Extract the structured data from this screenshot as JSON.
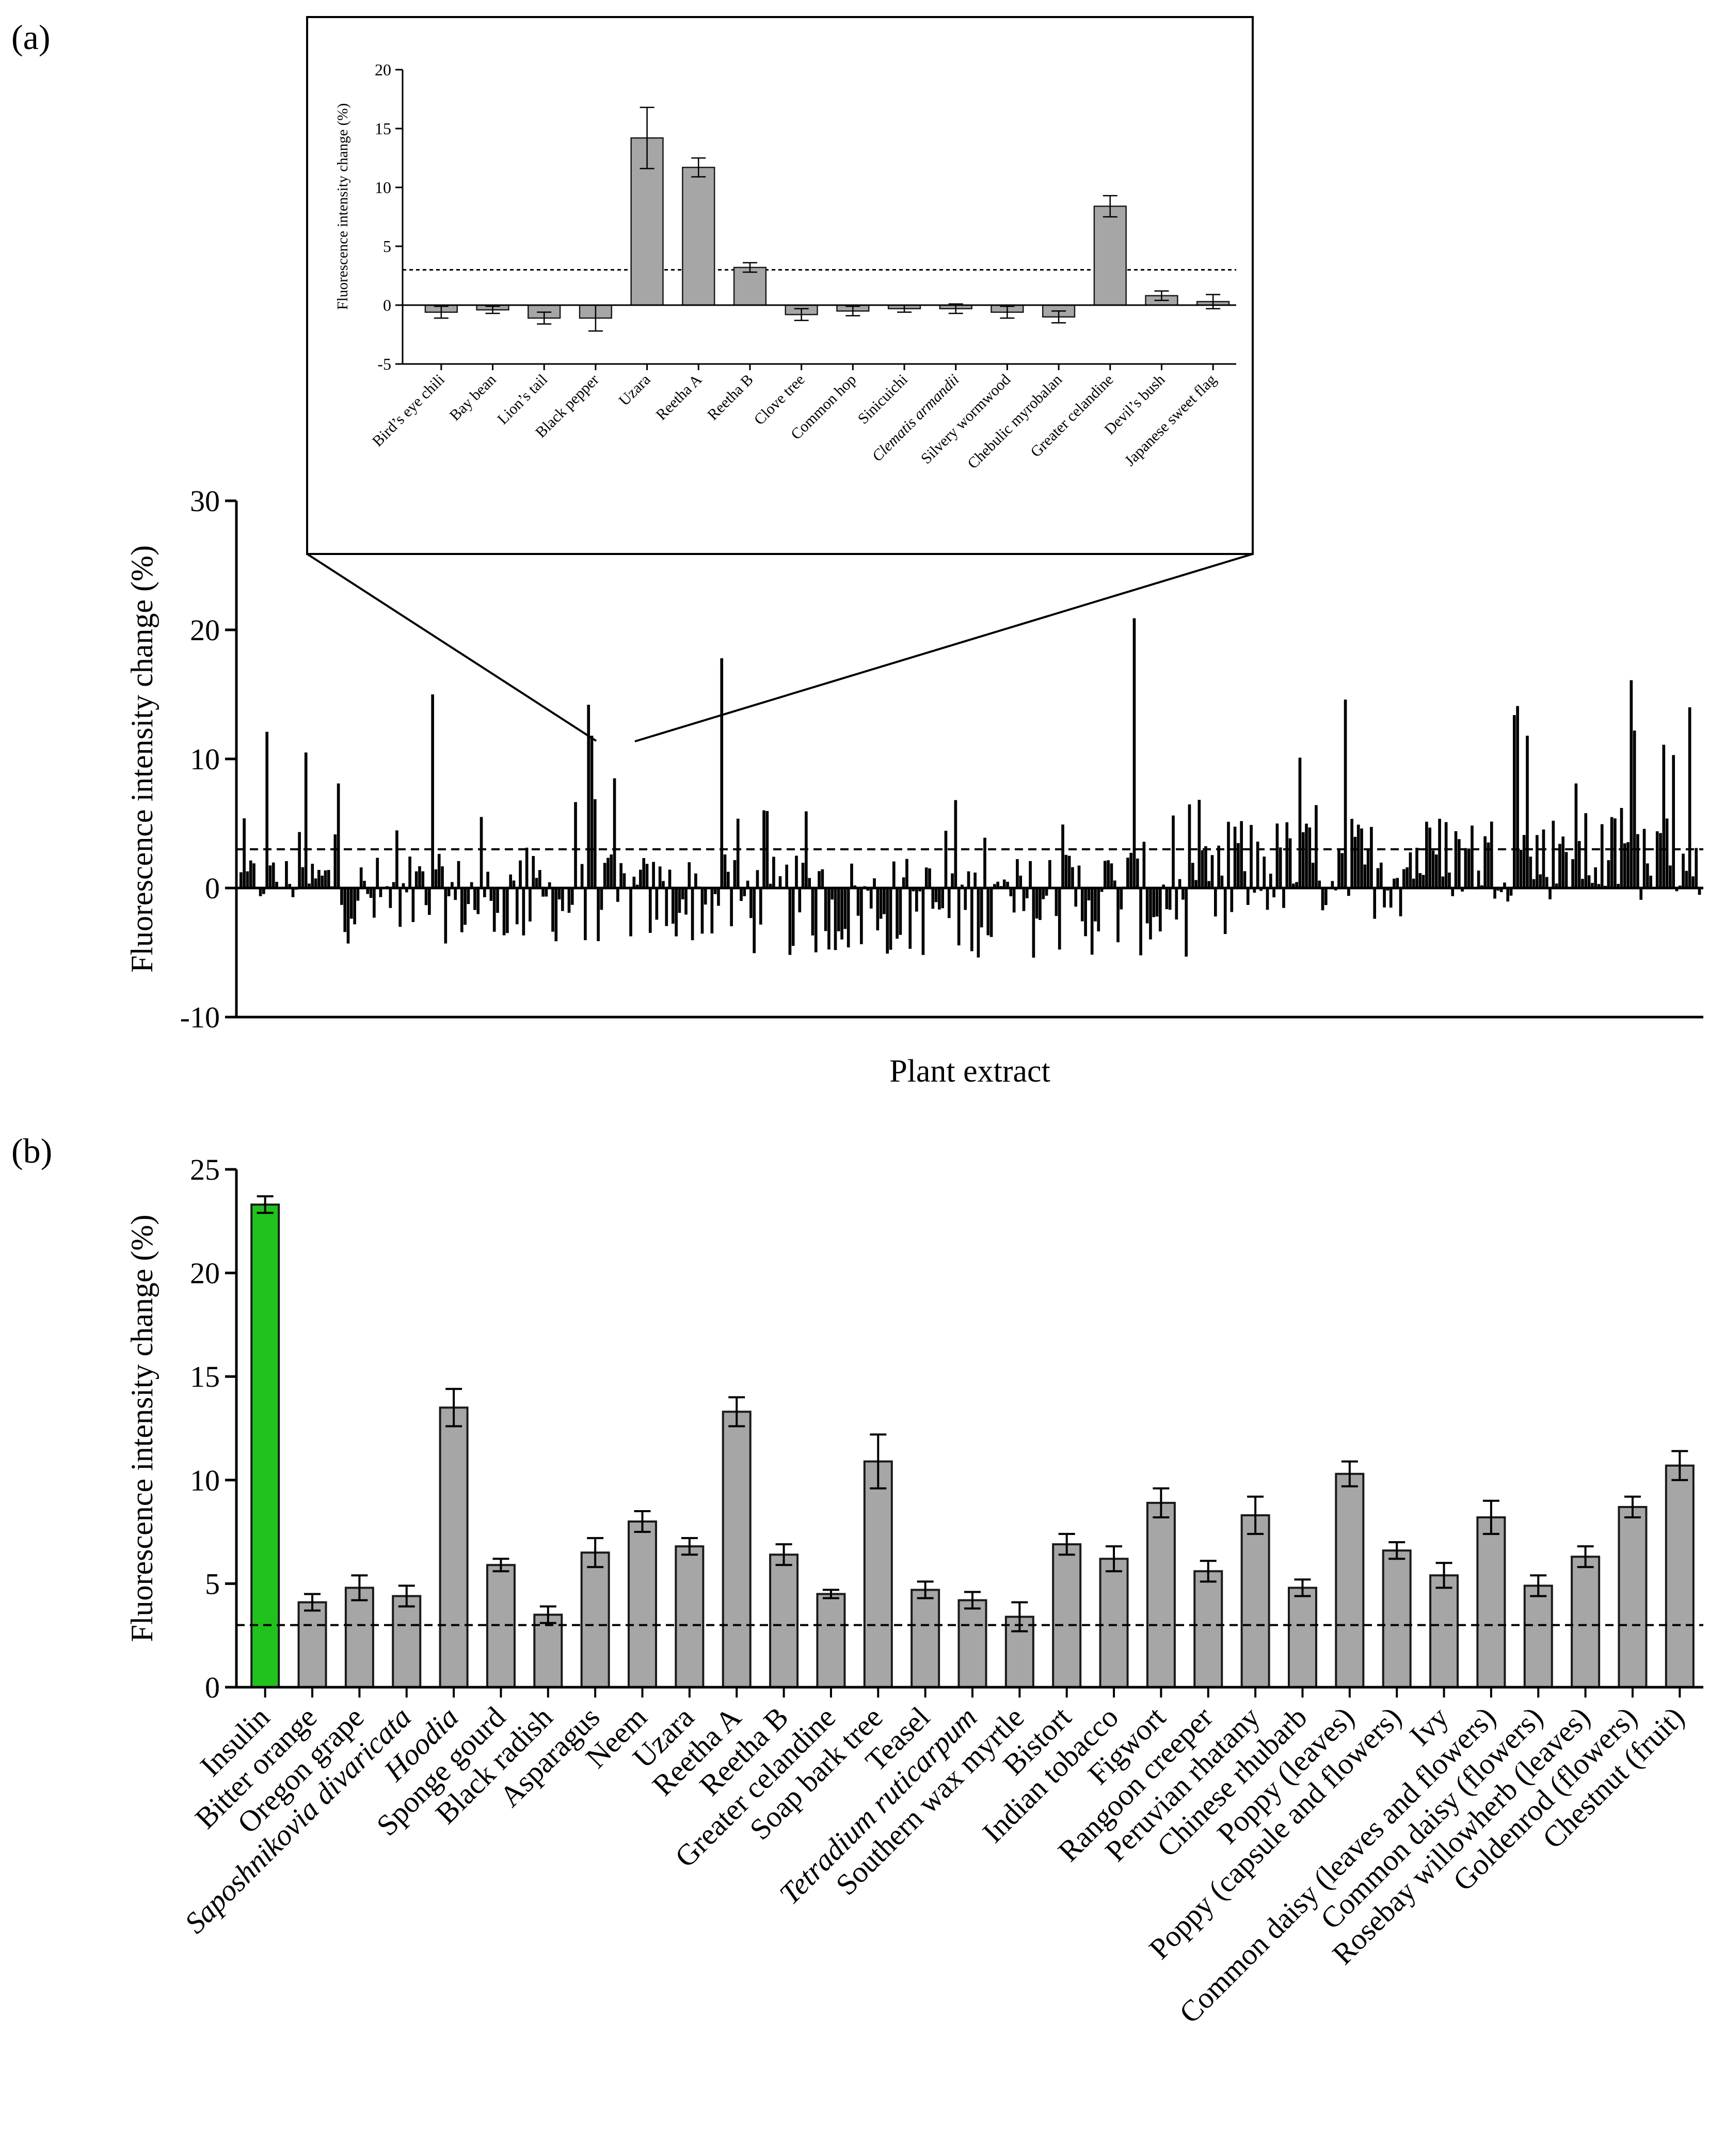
{
  "colors": {
    "bar": "#a6a6a6",
    "bar_stroke": "#1a1a1a",
    "highlight": "#22c21e",
    "axis": "#000000",
    "threshold_line": "#000000",
    "background": "#ffffff"
  },
  "panel_a_label": "(a)",
  "panel_b_label": "(b)",
  "chart_data": [
    {
      "id": "panel-a-main",
      "type": "bar",
      "title": "",
      "xlabel": "Plant extract",
      "ylabel": "Fluorescence intensity change (%)",
      "ylim": [
        -10,
        30
      ],
      "yticks": [
        -10,
        0,
        10,
        20,
        30
      ],
      "threshold": 3,
      "n_extracts": 450,
      "highlighted_peaks": [
        {
          "index": 8,
          "value": 12.1
        },
        {
          "index": 20,
          "value": 10.5
        },
        {
          "index": 30,
          "value": 8.1
        },
        {
          "index": 59,
          "value": 15.0
        },
        {
          "index": 107,
          "value": 14.2
        },
        {
          "index": 108,
          "value": 11.8
        },
        {
          "index": 115,
          "value": 8.5
        },
        {
          "index": 148,
          "value": 17.8
        },
        {
          "index": 275,
          "value": 20.9
        },
        {
          "index": 326,
          "value": 10.1
        },
        {
          "index": 340,
          "value": 14.6
        },
        {
          "index": 392,
          "value": 13.4
        },
        {
          "index": 393,
          "value": 14.1
        },
        {
          "index": 396,
          "value": 11.8
        },
        {
          "index": 411,
          "value": 8.1
        },
        {
          "index": 428,
          "value": 16.1
        },
        {
          "index": 429,
          "value": 12.2
        },
        {
          "index": 438,
          "value": 11.1
        },
        {
          "index": 441,
          "value": 10.3
        },
        {
          "index": 446,
          "value": 14.0
        }
      ]
    },
    {
      "id": "panel-a-inset",
      "type": "bar",
      "title": "",
      "xlabel": "",
      "ylabel": "Fluorescence intensity change (%)",
      "ylim": [
        -5,
        20
      ],
      "yticks": [
        -5,
        0,
        5,
        10,
        15,
        20
      ],
      "threshold": 3,
      "categories": [
        "Bird’s eye chili",
        "Bay bean",
        "Lion’s tail",
        "Black pepper",
        "Uzara",
        "Reetha A",
        "Reetha B",
        "Clove tree",
        "Common hop",
        "Sinicuichi",
        "Clematis armandii",
        "Silvery wormwood",
        "Chebulic myrobalan",
        "Greater celandine",
        "Devil’s bush",
        "Japanese sweet flag"
      ],
      "italic_categories": [
        "Clematis armandii"
      ],
      "values": [
        -0.6,
        -0.4,
        -1.1,
        -1.1,
        14.2,
        11.7,
        3.2,
        -0.8,
        -0.5,
        -0.3,
        -0.3,
        -0.6,
        -1.0,
        8.4,
        0.8,
        0.3
      ],
      "errors": [
        0.5,
        0.3,
        0.5,
        1.1,
        2.6,
        0.8,
        0.4,
        0.5,
        0.4,
        0.3,
        0.4,
        0.5,
        0.5,
        0.9,
        0.4,
        0.6
      ]
    },
    {
      "id": "panel-b",
      "type": "bar",
      "title": "",
      "xlabel": "",
      "ylabel": "Fluorescence intensity change (%)",
      "ylim": [
        0,
        25
      ],
      "yticks": [
        0,
        5,
        10,
        15,
        20,
        25
      ],
      "threshold": 3,
      "categories": [
        "Insulin",
        "Bitter orange",
        "Oregon grape",
        "Saposhnikovia divaricata",
        "Hoodia",
        "Sponge gourd",
        "Black radish",
        "Asparagus",
        "Neem",
        "Uzara",
        "Reetha A",
        "Reetha B",
        "Greater celandine",
        "Soap bark tree",
        "Teasel",
        "Tetradium ruticarpum",
        "Southern wax myrtle",
        "Bistort",
        "Indian tobacco",
        "Figwort",
        "Rangoon creeper",
        "Peruvian rhatany",
        "Chinese rhubarb",
        "Poppy (leaves)",
        "Poppy (capsule and flowers)",
        "Ivy",
        "Common daisy (leaves and flowers)",
        "Common daisy (flowers)",
        "Rosebay willowherb (leaves)",
        "Goldenrod (flowers)",
        "Chestnut (fruit)"
      ],
      "italic_categories": [
        "Saposhnikovia divaricata",
        "Hoodia",
        "Tetradium ruticarpum"
      ],
      "highlight_categories": [
        "Insulin"
      ],
      "values": [
        23.3,
        4.1,
        4.8,
        4.4,
        13.5,
        5.9,
        3.5,
        6.5,
        8.0,
        6.8,
        13.3,
        6.4,
        4.5,
        10.9,
        4.7,
        4.2,
        3.4,
        6.9,
        6.2,
        8.9,
        5.6,
        8.3,
        4.8,
        10.3,
        6.6,
        5.4,
        8.2,
        4.9,
        6.3,
        8.7,
        10.7
      ],
      "errors": [
        0.4,
        0.4,
        0.6,
        0.5,
        0.9,
        0.3,
        0.4,
        0.7,
        0.5,
        0.4,
        0.7,
        0.5,
        0.2,
        1.3,
        0.4,
        0.4,
        0.7,
        0.5,
        0.6,
        0.7,
        0.5,
        0.9,
        0.4,
        0.6,
        0.4,
        0.6,
        0.8,
        0.5,
        0.5,
        0.5,
        0.7
      ]
    }
  ]
}
